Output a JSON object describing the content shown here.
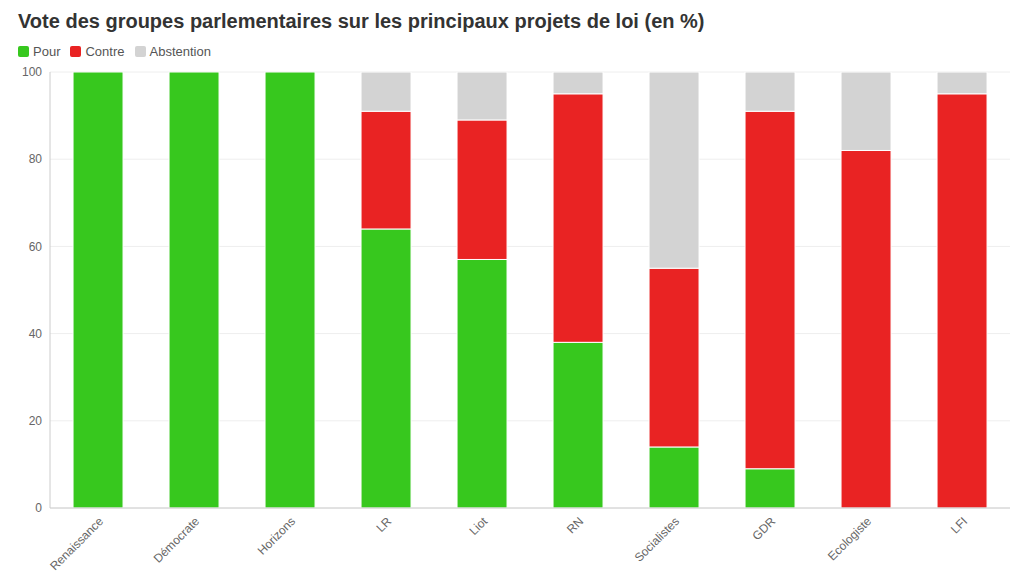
{
  "chart_data": {
    "type": "bar",
    "title": "Vote des groupes parlementaires sur les principaux projets de loi (en %)",
    "categories": [
      "Renaissance",
      "Démocrate",
      "Horizons",
      "LR",
      "Liot",
      "RN",
      "Socialistes",
      "GDR",
      "Ecologiste",
      "LFI"
    ],
    "series": [
      {
        "name": "Pour",
        "color": "#37c81e",
        "values": [
          100,
          100,
          100,
          64,
          57,
          38,
          14,
          9,
          0,
          0
        ]
      },
      {
        "name": "Contre",
        "color": "#e92323",
        "values": [
          0,
          0,
          0,
          27,
          32,
          57,
          41,
          82,
          82,
          95
        ]
      },
      {
        "name": "Abstention",
        "color": "#d3d3d3",
        "values": [
          0,
          0,
          0,
          9,
          11,
          5,
          45,
          9,
          18,
          5
        ]
      }
    ],
    "stacked": true,
    "ylim": [
      0,
      100
    ],
    "yticks": [
      0,
      20,
      40,
      60,
      80,
      100
    ],
    "grid": true,
    "legend": "top-left"
  }
}
